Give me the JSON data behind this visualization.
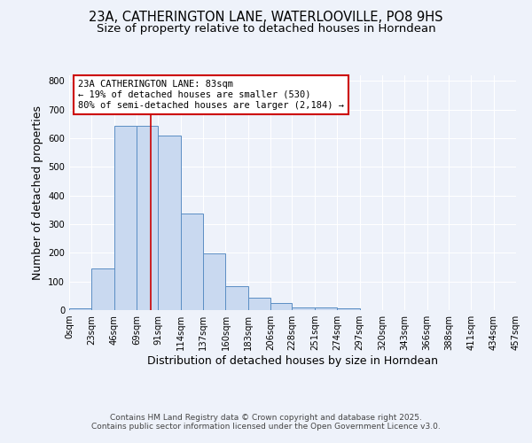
{
  "title_line1": "23A, CATHERINGTON LANE, WATERLOOVILLE, PO8 9HS",
  "title_line2": "Size of property relative to detached houses in Horndean",
  "xlabel": "Distribution of detached houses by size in Horndean",
  "ylabel": "Number of detached properties",
  "bin_edges": [
    0,
    23,
    46,
    69,
    91,
    114,
    137,
    160,
    183,
    206,
    228,
    251,
    274,
    297,
    320,
    343,
    366,
    388,
    411,
    434,
    457
  ],
  "bar_heights": [
    5,
    145,
    645,
    645,
    610,
    338,
    198,
    83,
    42,
    25,
    10,
    10,
    5,
    0,
    0,
    0,
    0,
    0,
    0,
    0
  ],
  "bar_facecolor": "#c9d9f0",
  "bar_edgecolor": "#5b8ec4",
  "ylim": [
    0,
    820
  ],
  "yticks": [
    0,
    100,
    200,
    300,
    400,
    500,
    600,
    700,
    800
  ],
  "property_size": 83,
  "property_line_color": "#cc0000",
  "annotation_line1": "23A CATHERINGTON LANE: 83sqm",
  "annotation_line2": "← 19% of detached houses are smaller (530)",
  "annotation_line3": "80% of semi-detached houses are larger (2,184) →",
  "annotation_box_edgecolor": "#cc0000",
  "annotation_box_facecolor": "#ffffff",
  "footer_line1": "Contains HM Land Registry data © Crown copyright and database right 2025.",
  "footer_line2": "Contains public sector information licensed under the Open Government Licence v3.0.",
  "background_color": "#eef2fa",
  "grid_color": "#ffffff",
  "title_fontsize": 10.5,
  "subtitle_fontsize": 9.5,
  "tick_label_fontsize": 7.2,
  "axis_label_fontsize": 9.0,
  "footer_fontsize": 6.5
}
